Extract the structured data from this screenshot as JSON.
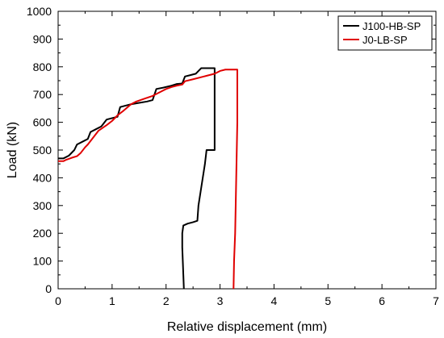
{
  "chart_data": {
    "type": "line",
    "title": "",
    "xlabel": "Relative displacement (mm)",
    "ylabel": "Load (kN)",
    "xlim": [
      0,
      7
    ],
    "ylim": [
      0,
      1000
    ],
    "xticks": [
      0,
      1,
      2,
      3,
      4,
      5,
      6,
      7
    ],
    "yticks": [
      0,
      100,
      200,
      300,
      400,
      500,
      600,
      700,
      800,
      900,
      1000
    ],
    "grid": false,
    "legend_position": "top-right",
    "series": [
      {
        "name": "J100-HB-SP",
        "color": "#000000",
        "points": [
          [
            0.0,
            470
          ],
          [
            0.1,
            470
          ],
          [
            0.2,
            480
          ],
          [
            0.3,
            500
          ],
          [
            0.35,
            520
          ],
          [
            0.45,
            530
          ],
          [
            0.55,
            540
          ],
          [
            0.6,
            565
          ],
          [
            0.7,
            575
          ],
          [
            0.8,
            585
          ],
          [
            0.9,
            610
          ],
          [
            1.0,
            615
          ],
          [
            1.1,
            620
          ],
          [
            1.15,
            655
          ],
          [
            1.25,
            660
          ],
          [
            1.35,
            665
          ],
          [
            1.5,
            670
          ],
          [
            1.65,
            675
          ],
          [
            1.75,
            680
          ],
          [
            1.82,
            720
          ],
          [
            1.95,
            725
          ],
          [
            2.1,
            732
          ],
          [
            2.2,
            738
          ],
          [
            2.3,
            740
          ],
          [
            2.35,
            765
          ],
          [
            2.45,
            770
          ],
          [
            2.55,
            775
          ],
          [
            2.65,
            795
          ],
          [
            2.75,
            795
          ],
          [
            2.85,
            795
          ],
          [
            2.9,
            795
          ],
          [
            2.9,
            500
          ],
          [
            2.85,
            500
          ],
          [
            2.75,
            500
          ],
          [
            2.72,
            450
          ],
          [
            2.68,
            400
          ],
          [
            2.64,
            350
          ],
          [
            2.6,
            300
          ],
          [
            2.58,
            245
          ],
          [
            2.5,
            240
          ],
          [
            2.4,
            235
          ],
          [
            2.32,
            228
          ],
          [
            2.3,
            200
          ],
          [
            2.3,
            150
          ],
          [
            2.31,
            100
          ],
          [
            2.32,
            50
          ],
          [
            2.33,
            0
          ]
        ]
      },
      {
        "name": "J0-LB-SP",
        "color": "#e00000",
        "points": [
          [
            0.0,
            460
          ],
          [
            0.1,
            460
          ],
          [
            0.15,
            465
          ],
          [
            0.25,
            472
          ],
          [
            0.35,
            478
          ],
          [
            0.42,
            490
          ],
          [
            0.5,
            510
          ],
          [
            0.55,
            520
          ],
          [
            0.65,
            545
          ],
          [
            0.75,
            570
          ],
          [
            0.9,
            590
          ],
          [
            1.0,
            605
          ],
          [
            1.1,
            625
          ],
          [
            1.2,
            640
          ],
          [
            1.35,
            665
          ],
          [
            1.45,
            675
          ],
          [
            1.6,
            685
          ],
          [
            1.75,
            695
          ],
          [
            1.9,
            710
          ],
          [
            2.0,
            720
          ],
          [
            2.1,
            727
          ],
          [
            2.2,
            732
          ],
          [
            2.3,
            736
          ],
          [
            2.35,
            748
          ],
          [
            2.5,
            755
          ],
          [
            2.7,
            765
          ],
          [
            2.9,
            775
          ],
          [
            3.0,
            785
          ],
          [
            3.1,
            790
          ],
          [
            3.32,
            790
          ],
          [
            3.32,
            780
          ],
          [
            3.32,
            600
          ],
          [
            3.3,
            400
          ],
          [
            3.28,
            200
          ],
          [
            3.26,
            100
          ],
          [
            3.25,
            0
          ]
        ]
      }
    ]
  }
}
